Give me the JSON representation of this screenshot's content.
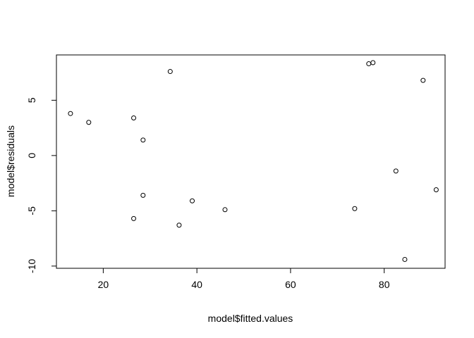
{
  "chart_data": {
    "type": "scatter",
    "title": "",
    "xlabel": "model$fitted.values",
    "ylabel": "model$residuals",
    "xlim": [
      10,
      93
    ],
    "ylim": [
      -10.2,
      9.1
    ],
    "x_ticks": [
      20,
      40,
      60,
      80
    ],
    "y_ticks": [
      -10,
      -5,
      0,
      5
    ],
    "grid": false,
    "marker": "open-circle",
    "points": [
      {
        "x": 13.0,
        "y": 3.8
      },
      {
        "x": 16.9,
        "y": 3.0
      },
      {
        "x": 26.5,
        "y": 3.4
      },
      {
        "x": 28.5,
        "y": 1.4
      },
      {
        "x": 34.3,
        "y": 7.6
      },
      {
        "x": 28.5,
        "y": -3.6
      },
      {
        "x": 26.5,
        "y": -5.7
      },
      {
        "x": 36.2,
        "y": -6.3
      },
      {
        "x": 39.0,
        "y": -4.1
      },
      {
        "x": 46.0,
        "y": -4.9
      },
      {
        "x": 73.7,
        "y": -4.8
      },
      {
        "x": 76.7,
        "y": 8.3
      },
      {
        "x": 77.6,
        "y": 8.4
      },
      {
        "x": 82.5,
        "y": -1.4
      },
      {
        "x": 84.4,
        "y": -9.4
      },
      {
        "x": 88.3,
        "y": 6.8
      },
      {
        "x": 91.1,
        "y": -3.1
      }
    ]
  }
}
